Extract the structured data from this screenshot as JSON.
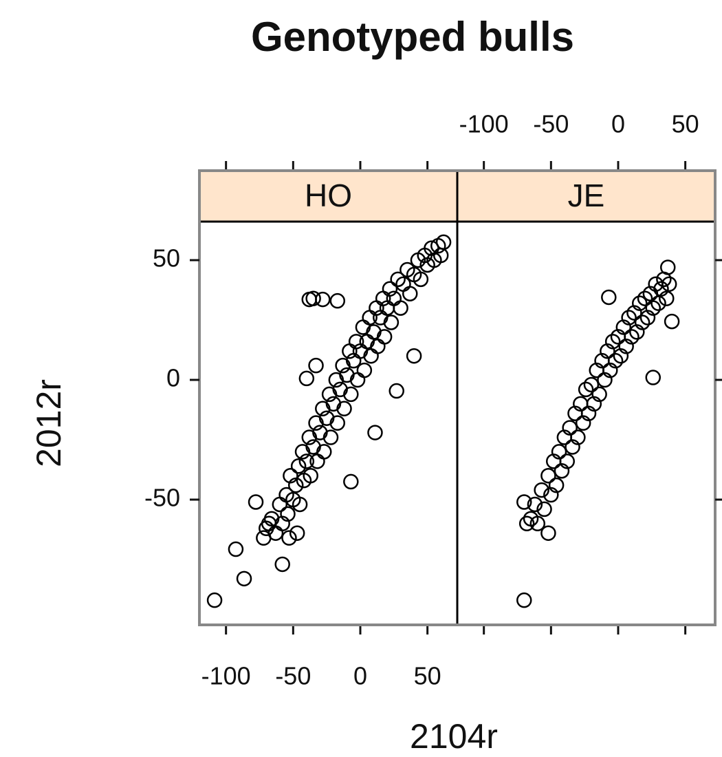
{
  "chart_data": {
    "type": "scatter",
    "title": "Genotyped bulls",
    "x_label": "2104r",
    "y_label": "2012r",
    "xlim": [
      -119.8,
      72.2
    ],
    "ylim": [
      -102.3,
      66.1
    ],
    "xticks": [
      -100,
      -50,
      0,
      50
    ],
    "yticks": [
      -50,
      0,
      50
    ],
    "strip_color": "#ffe5cc",
    "point_color": "#000000",
    "panels": [
      {
        "name": "HO",
        "x": [
          -108.5,
          -92.7,
          -86.5,
          -77.8,
          -58,
          -38,
          -28,
          -17,
          -35,
          62,
          40,
          27,
          11,
          -7,
          -40,
          -33,
          -53,
          -47,
          -72,
          -68,
          -70,
          -66,
          -63,
          -60,
          -58,
          -55,
          -54,
          -52,
          -50,
          -48,
          -46,
          -45,
          -43,
          -42,
          -40,
          -38,
          -37,
          -35,
          -33,
          -32,
          -30,
          -28,
          -27,
          -25,
          -23,
          -22,
          -20,
          -18,
          -17,
          -15,
          -13,
          -12,
          -10,
          -8,
          -7,
          -5,
          -3,
          -2,
          0,
          2,
          3,
          5,
          7,
          8,
          10,
          12,
          13,
          15,
          17,
          18,
          20,
          22,
          23,
          25,
          28,
          30,
          32,
          35,
          37,
          40,
          43,
          45,
          48,
          50,
          53,
          55,
          58,
          60
        ],
        "y": [
          -92,
          -70.7,
          -83,
          -51,
          -77,
          33.6,
          33.6,
          33,
          34,
          57.5,
          10,
          -4.6,
          -22,
          -42.5,
          0.6,
          6,
          -66,
          -64,
          -66,
          -60,
          -62,
          -58,
          -64,
          -52,
          -60,
          -48,
          -56,
          -40,
          -50,
          -44,
          -36,
          -52,
          -30,
          -42,
          -34,
          -24,
          -40,
          -28,
          -18,
          -34,
          -22,
          -12,
          -30,
          -16,
          -6,
          -24,
          -10,
          0,
          -18,
          -4,
          6,
          -12,
          2,
          12,
          -6,
          8,
          16,
          0,
          12,
          22,
          4,
          16,
          26,
          10,
          20,
          30,
          14,
          26,
          34,
          18,
          30,
          38,
          24,
          34,
          42,
          30,
          40,
          46,
          36,
          44,
          50,
          42,
          52,
          48,
          55,
          50,
          56,
          52
        ]
      },
      {
        "name": "JE",
        "x": [
          -70,
          -70,
          -52,
          -7,
          26,
          40,
          37,
          -68,
          -65,
          -62,
          -60,
          -57,
          -55,
          -52,
          -50,
          -48,
          -46,
          -44,
          -42,
          -40,
          -38,
          -36,
          -34,
          -32,
          -30,
          -28,
          -26,
          -24,
          -22,
          -20,
          -18,
          -16,
          -14,
          -12,
          -10,
          -8,
          -6,
          -4,
          -2,
          0,
          2,
          4,
          6,
          8,
          10,
          12,
          14,
          16,
          18,
          20,
          22,
          24,
          26,
          28,
          30,
          32,
          34,
          36,
          38
        ],
        "y": [
          -92,
          -51,
          -64,
          34.5,
          1,
          24.4,
          47,
          -60,
          -58,
          -52,
          -60,
          -46,
          -54,
          -40,
          -48,
          -34,
          -44,
          -30,
          -38,
          -24,
          -34,
          -20,
          -28,
          -14,
          -24,
          -10,
          -18,
          -4,
          -14,
          -2,
          -10,
          4,
          -6,
          8,
          0,
          12,
          4,
          16,
          8,
          18,
          10,
          22,
          14,
          26,
          18,
          28,
          20,
          32,
          24,
          34,
          26,
          36,
          30,
          40,
          32,
          38,
          42,
          34,
          40
        ]
      }
    ]
  }
}
